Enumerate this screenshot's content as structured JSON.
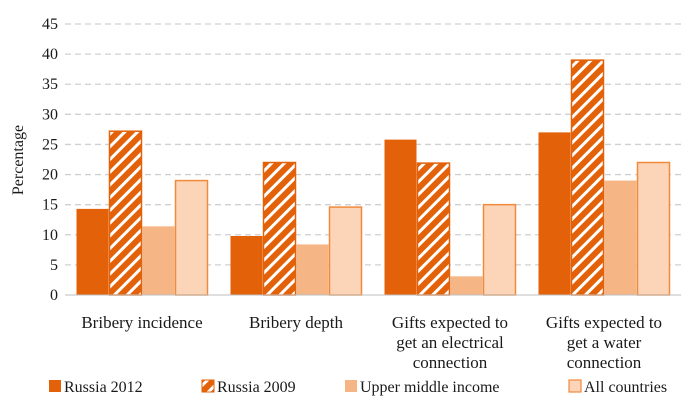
{
  "chart_data": {
    "type": "bar",
    "ylabel": "Percentage",
    "xlabel": "",
    "ylim": [
      0,
      45
    ],
    "yticks": [
      "0",
      "5",
      "10",
      "15",
      "20",
      "25",
      "30",
      "35",
      "40",
      "45"
    ],
    "grid": true,
    "legend_position": "bottom",
    "categories": [
      [
        "Bribery incidence"
      ],
      [
        "Bribery depth"
      ],
      [
        "Gifts expected to",
        "get an electrical",
        "connection"
      ],
      [
        "Gifts expected to",
        "get a water",
        "connection"
      ]
    ],
    "series": [
      {
        "name": "Russia 2012",
        "values": [
          14.3,
          9.8,
          25.8,
          27.0
        ],
        "color": "#E36209",
        "pattern": "solid"
      },
      {
        "name": "Russia 2009",
        "values": [
          27.2,
          22.0,
          21.9,
          39.0
        ],
        "color": "#E36209",
        "pattern": "hatch"
      },
      {
        "name": "Upper middle income",
        "values": [
          11.4,
          8.4,
          3.1,
          19.0
        ],
        "color": "#F5B585",
        "pattern": "solid"
      },
      {
        "name": "All countries",
        "values": [
          19.0,
          14.6,
          15.0,
          22.0
        ],
        "color": "#FCD5B8",
        "pattern": "outline"
      }
    ]
  }
}
